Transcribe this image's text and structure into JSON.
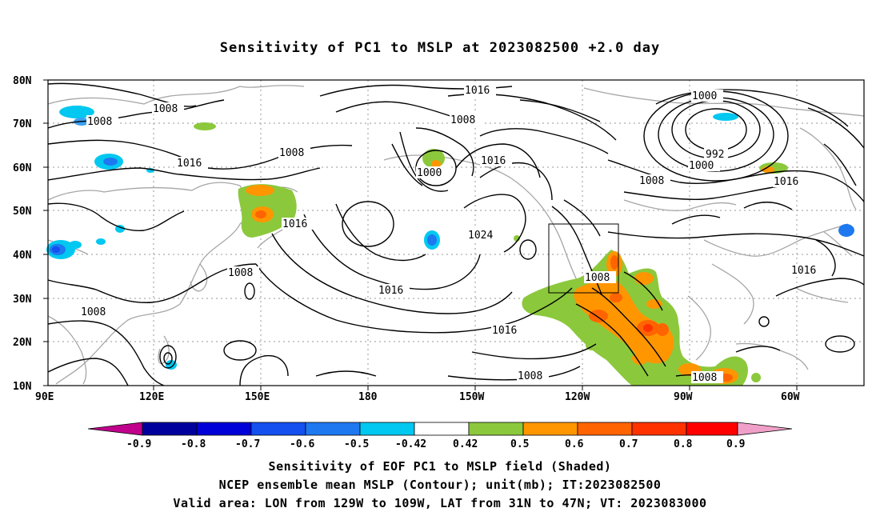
{
  "title": "Sensitivity of PC1 to MSLP at 2023082500 +2.0 day",
  "lat_labels": [
    "80N",
    "70N",
    "60N",
    "50N",
    "40N",
    "30N",
    "20N",
    "10N"
  ],
  "lon_labels": [
    "90E",
    "120E",
    "150E",
    "180",
    "150W",
    "120W",
    "90W",
    "60W"
  ],
  "contour_labels": [
    "1008",
    "1008",
    "1016",
    "1008",
    "1016",
    "1000",
    "1008",
    "1016",
    "1024",
    "1016",
    "1016",
    "1008",
    "1008",
    "1008",
    "1000",
    "992",
    "1000",
    "1008",
    "1016",
    "1016",
    "1008",
    "1008",
    "1016"
  ],
  "colorbar": {
    "tick_labels": [
      "-0.9",
      "-0.8",
      "-0.7",
      "-0.6",
      "-0.5",
      "-0.42",
      "0.42",
      "0.5",
      "0.6",
      "0.7",
      "0.8",
      "0.9"
    ],
    "colors": [
      "#c0008c",
      "#00009c",
      "#0000d8",
      "#1450f0",
      "#1e78f0",
      "#3ca0f0",
      "#00c8f0",
      "#ffffff",
      "#8cc83c",
      "#ff9600",
      "#ff6400",
      "#ff3200",
      "#ff0000",
      "#f0a0c8"
    ]
  },
  "captions": [
    "Sensitivity of EOF PC1 to MSLP field (Shaded)",
    "NCEP ensemble mean MSLP (Contour); unit(mb); IT:2023082500",
    "Valid area: LON from 129W to 109W, LAT from 31N to 47N; VT: 2023083000"
  ]
}
